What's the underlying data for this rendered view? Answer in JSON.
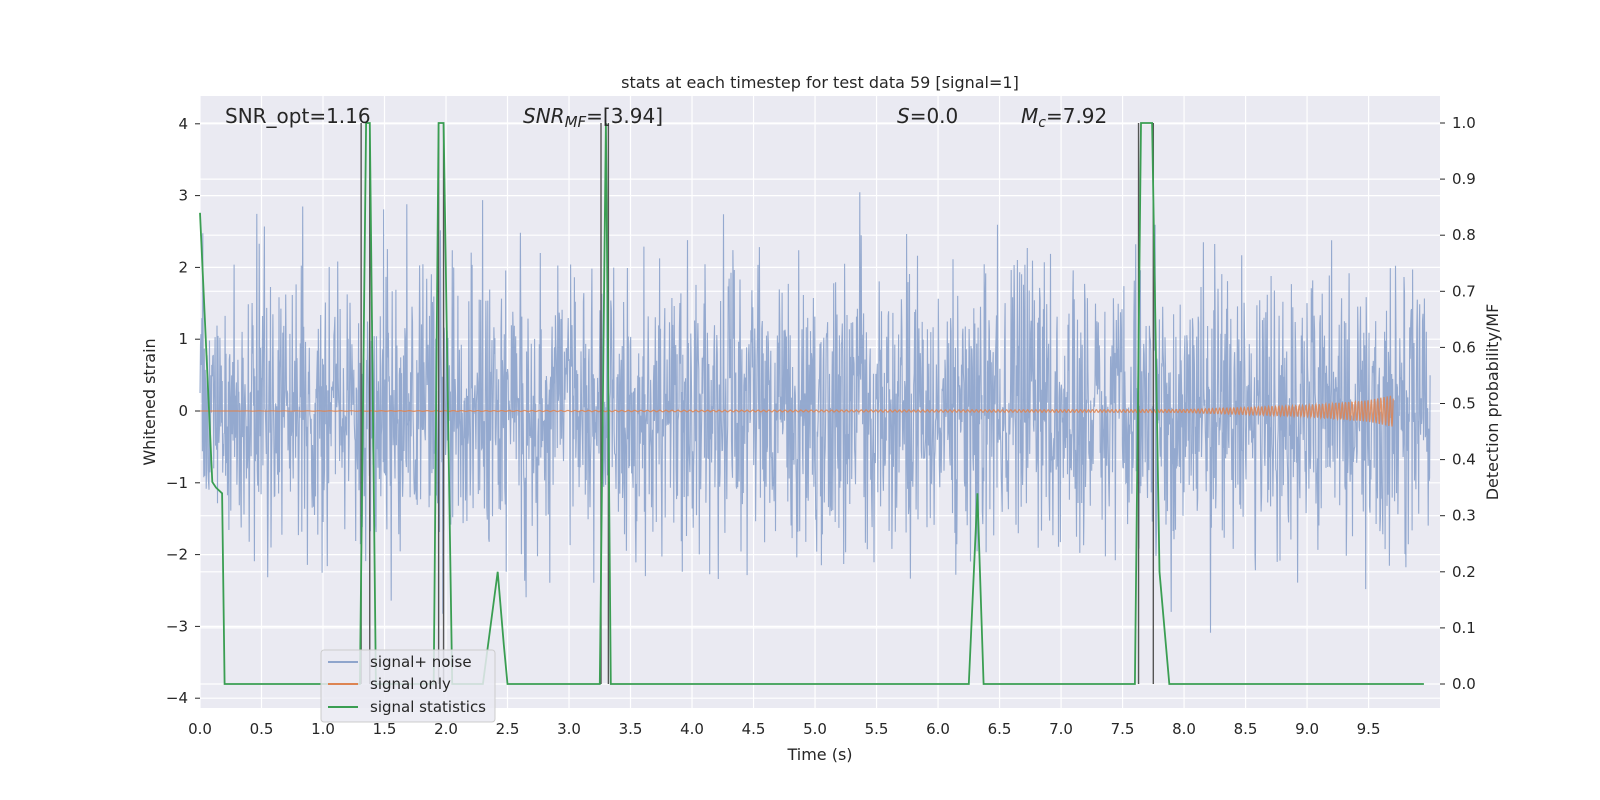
{
  "chart_data": {
    "type": "line",
    "title": "stats at each timestep for test data 59 [signal=1]",
    "xlabel": "Time (s)",
    "ylabel_left": "Whitened strain",
    "ylabel_right": "Detection probability/MF",
    "xlim": [
      0.0,
      10.0
    ],
    "ylim_left": [
      -4.4,
      4.4
    ],
    "ylim_right": [
      -0.05,
      1.05
    ],
    "x_ticks": [
      "0.0",
      "0.5",
      "1.0",
      "1.5",
      "2.0",
      "2.5",
      "3.0",
      "3.5",
      "4.0",
      "4.5",
      "5.0",
      "5.5",
      "6.0",
      "6.5",
      "7.0",
      "7.5",
      "8.0",
      "8.5",
      "9.0",
      "9.5"
    ],
    "y_left_ticks": [
      "4",
      "3",
      "2",
      "1",
      "0",
      "−1",
      "−2",
      "−3",
      "−4"
    ],
    "y_right_ticks": [
      "1.0",
      "0.9",
      "0.8",
      "0.7",
      "0.6",
      "0.5",
      "0.4",
      "0.3",
      "0.2",
      "0.1",
      "0.0"
    ],
    "grid": true,
    "annotations": {
      "snr_opt": "SNR_opt=1.16",
      "snr_mf_main": "SNR",
      "snr_mf_sub": "MF",
      "snr_mf_value": "=[3.94]",
      "s_main": "S",
      "s_value": "=0.0",
      "mc_main": "M",
      "mc_sub": "c",
      "mc_value": "=7.92"
    },
    "legend": {
      "placement": "lower-left",
      "entries": [
        "signal+ noise",
        "signal only",
        "signal statistics"
      ]
    },
    "colors": {
      "noise": "#8fa5cc",
      "signal": "#dd8452",
      "stats": "#3a9e52",
      "vlines": "#555555",
      "background": "#eaeaf2"
    },
    "series": [
      {
        "name": "signal+ noise",
        "style": "noisy band",
        "sigma": 1.0,
        "x_start": 0.0,
        "x_end": 10.0
      },
      {
        "name": "signal only",
        "x": [
          0.0,
          8.0,
          9.0,
          9.5,
          9.7
        ],
        "amplitude": [
          0.0,
          0.02,
          0.08,
          0.15,
          0.22
        ]
      },
      {
        "name": "signal statistics",
        "x": [
          0.0,
          0.1,
          0.13,
          0.18,
          0.2,
          0.3,
          0.38,
          0.43,
          0.48,
          0.55,
          1.3,
          1.35,
          1.38,
          1.43,
          1.5,
          1.9,
          1.94,
          1.98,
          2.05,
          2.3,
          2.42,
          2.47,
          2.5,
          3.2,
          3.25,
          3.3,
          3.34,
          3.38,
          3.4,
          6.25,
          6.32,
          6.37,
          6.42,
          6.5,
          7.3,
          7.4,
          7.45,
          7.6,
          7.65,
          7.7,
          7.74,
          7.8,
          7.88,
          8.0,
          9.95
        ],
        "y": [
          0.84,
          0.36,
          0.35,
          0.34,
          0.0,
          0.0,
          0.0,
          0.0,
          0.0,
          0.0,
          0.0,
          1.0,
          1.0,
          0.0,
          0.0,
          0.0,
          1.0,
          1.0,
          0.0,
          0.0,
          0.2,
          0.07,
          0.0,
          0.0,
          0.0,
          1.0,
          0.0,
          0.0,
          0.0,
          0.0,
          0.34,
          0.0,
          0.0,
          0.0,
          0.0,
          0.0,
          0.0,
          0.0,
          1.0,
          1.0,
          1.0,
          0.2,
          0.0,
          0.0,
          0.0
        ]
      }
    ],
    "vertical_markers": [
      1.31,
      1.38,
      1.94,
      1.98,
      3.26,
      3.32,
      7.63,
      7.75
    ]
  }
}
